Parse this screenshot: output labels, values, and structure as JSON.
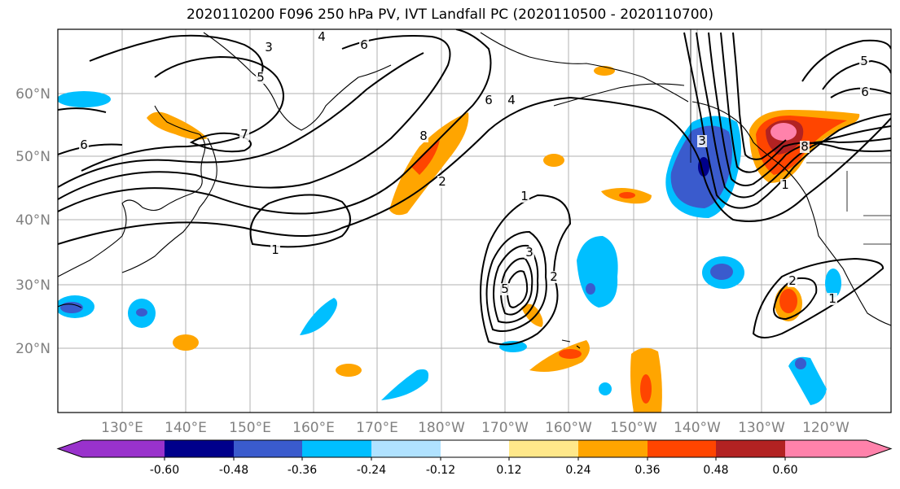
{
  "title": "2020110200 F096 250 hPa PV, IVT Landfall PC (2020110500 - 2020110700)",
  "map": {
    "lat_labels": [
      "60°N",
      "50°N",
      "40°N",
      "30°N",
      "20°N"
    ],
    "lon_labels": [
      "130°E",
      "140°E",
      "150°E",
      "160°E",
      "170°E",
      "180°W",
      "170°W",
      "160°W",
      "150°W",
      "140°W",
      "130°W",
      "120°W"
    ],
    "pv_contour_labels": [
      "1",
      "2",
      "3",
      "4",
      "5",
      "6",
      "7",
      "8"
    ],
    "colors": {
      "contour": "#000000",
      "grid": "#b0b0b0",
      "coast": "#000000"
    }
  },
  "colorbar": {
    "ticks": [
      "-0.60",
      "-0.48",
      "-0.36",
      "-0.24",
      "-0.12",
      "0.12",
      "0.24",
      "0.36",
      "0.48",
      "0.60"
    ],
    "colors": [
      "#9932cc",
      "#00008b",
      "#3a5bcd",
      "#00bfff",
      "#b0e2ff",
      "#ffffff",
      "#ffe88a",
      "#ffa500",
      "#ff4500",
      "#b22222",
      "#ff82ab",
      "#ff82ab"
    ]
  }
}
